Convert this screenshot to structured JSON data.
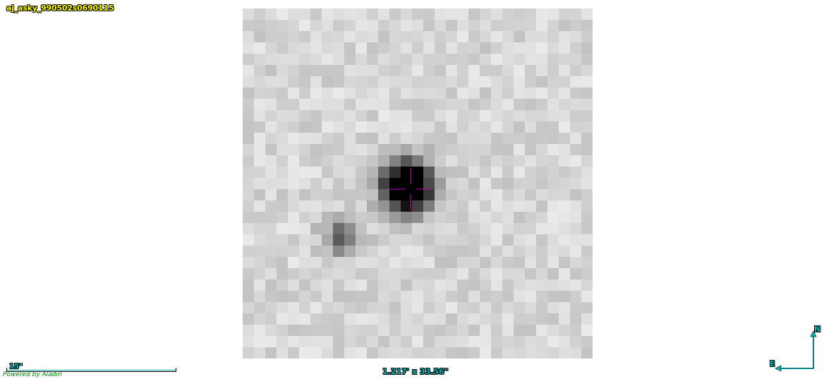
{
  "survey_title": "aj_asky_990502s0690115",
  "scale": {
    "label": "15\""
  },
  "field_of_view": "1.217' x 33.56\"",
  "credit": "Powered by Aladin",
  "compass": {
    "north": "N",
    "east": "E"
  },
  "colors": {
    "title": "#ffff00",
    "overlay": "#00b5b5",
    "reticle": "#cc00cc",
    "credit": "#008000"
  },
  "image_grid": 31
}
